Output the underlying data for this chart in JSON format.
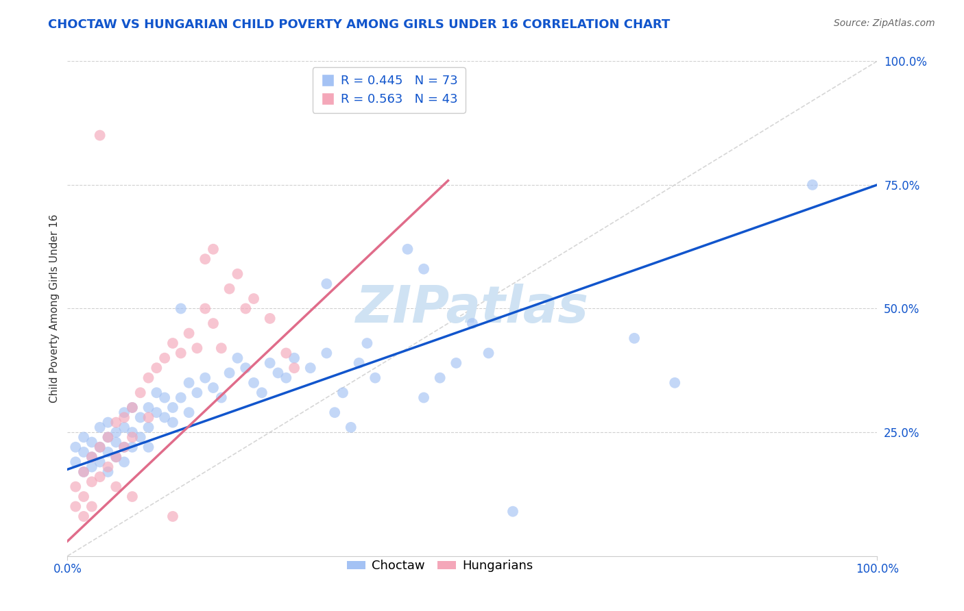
{
  "title": "CHOCTAW VS HUNGARIAN CHILD POVERTY AMONG GIRLS UNDER 16 CORRELATION CHART",
  "source": "Source: ZipAtlas.com",
  "ylabel": "Child Poverty Among Girls Under 16",
  "xlim": [
    0,
    1.0
  ],
  "ylim": [
    0,
    1.0
  ],
  "xtick_positions": [
    0.0,
    1.0
  ],
  "xtick_labels": [
    "0.0%",
    "100.0%"
  ],
  "ytick_positions": [
    0.25,
    0.5,
    0.75,
    1.0
  ],
  "ytick_labels": [
    "25.0%",
    "50.0%",
    "75.0%",
    "100.0%"
  ],
  "choctaw_R": 0.445,
  "choctaw_N": 73,
  "hungarian_R": 0.563,
  "hungarian_N": 43,
  "choctaw_color": "#a4c2f4",
  "hungarian_color": "#f4a7b9",
  "choctaw_line_color": "#1155cc",
  "hungarian_line_color": "#e06c8a",
  "diagonal_color": "#cccccc",
  "watermark": "ZIPatlas",
  "watermark_color": "#cfe2f3",
  "title_color": "#1155cc",
  "source_color": "#666666",
  "tick_color": "#1155cc",
  "ylabel_color": "#333333",
  "choctaw_line_intercept": 0.175,
  "choctaw_line_slope": 0.575,
  "hungarian_line_intercept": 0.03,
  "hungarian_line_slope": 1.55,
  "choctaw_points": [
    [
      0.01,
      0.22
    ],
    [
      0.01,
      0.19
    ],
    [
      0.02,
      0.21
    ],
    [
      0.02,
      0.17
    ],
    [
      0.02,
      0.24
    ],
    [
      0.03,
      0.2
    ],
    [
      0.03,
      0.23
    ],
    [
      0.03,
      0.18
    ],
    [
      0.04,
      0.22
    ],
    [
      0.04,
      0.26
    ],
    [
      0.04,
      0.19
    ],
    [
      0.05,
      0.24
    ],
    [
      0.05,
      0.21
    ],
    [
      0.05,
      0.17
    ],
    [
      0.05,
      0.27
    ],
    [
      0.06,
      0.23
    ],
    [
      0.06,
      0.2
    ],
    [
      0.06,
      0.25
    ],
    [
      0.07,
      0.26
    ],
    [
      0.07,
      0.22
    ],
    [
      0.07,
      0.29
    ],
    [
      0.07,
      0.19
    ],
    [
      0.08,
      0.25
    ],
    [
      0.08,
      0.3
    ],
    [
      0.08,
      0.22
    ],
    [
      0.09,
      0.28
    ],
    [
      0.09,
      0.24
    ],
    [
      0.1,
      0.3
    ],
    [
      0.1,
      0.26
    ],
    [
      0.1,
      0.22
    ],
    [
      0.11,
      0.29
    ],
    [
      0.11,
      0.33
    ],
    [
      0.12,
      0.28
    ],
    [
      0.12,
      0.32
    ],
    [
      0.13,
      0.3
    ],
    [
      0.13,
      0.27
    ],
    [
      0.14,
      0.32
    ],
    [
      0.15,
      0.35
    ],
    [
      0.15,
      0.29
    ],
    [
      0.16,
      0.33
    ],
    [
      0.17,
      0.36
    ],
    [
      0.18,
      0.34
    ],
    [
      0.19,
      0.32
    ],
    [
      0.2,
      0.37
    ],
    [
      0.21,
      0.4
    ],
    [
      0.22,
      0.38
    ],
    [
      0.23,
      0.35
    ],
    [
      0.24,
      0.33
    ],
    [
      0.25,
      0.39
    ],
    [
      0.26,
      0.37
    ],
    [
      0.27,
      0.36
    ],
    [
      0.28,
      0.4
    ],
    [
      0.3,
      0.38
    ],
    [
      0.32,
      0.41
    ],
    [
      0.33,
      0.29
    ],
    [
      0.34,
      0.33
    ],
    [
      0.35,
      0.26
    ],
    [
      0.36,
      0.39
    ],
    [
      0.37,
      0.43
    ],
    [
      0.38,
      0.36
    ],
    [
      0.32,
      0.55
    ],
    [
      0.42,
      0.62
    ],
    [
      0.44,
      0.58
    ],
    [
      0.48,
      0.39
    ],
    [
      0.14,
      0.5
    ],
    [
      0.7,
      0.44
    ],
    [
      0.75,
      0.35
    ],
    [
      0.92,
      0.75
    ],
    [
      0.5,
      0.47
    ],
    [
      0.52,
      0.41
    ],
    [
      0.44,
      0.32
    ],
    [
      0.46,
      0.36
    ],
    [
      0.55,
      0.09
    ]
  ],
  "hungarian_points": [
    [
      0.01,
      0.14
    ],
    [
      0.01,
      0.1
    ],
    [
      0.02,
      0.17
    ],
    [
      0.02,
      0.12
    ],
    [
      0.02,
      0.08
    ],
    [
      0.03,
      0.2
    ],
    [
      0.03,
      0.15
    ],
    [
      0.03,
      0.1
    ],
    [
      0.04,
      0.22
    ],
    [
      0.04,
      0.16
    ],
    [
      0.05,
      0.24
    ],
    [
      0.05,
      0.18
    ],
    [
      0.06,
      0.27
    ],
    [
      0.06,
      0.2
    ],
    [
      0.06,
      0.14
    ],
    [
      0.07,
      0.28
    ],
    [
      0.07,
      0.22
    ],
    [
      0.08,
      0.3
    ],
    [
      0.08,
      0.24
    ],
    [
      0.09,
      0.33
    ],
    [
      0.1,
      0.36
    ],
    [
      0.1,
      0.28
    ],
    [
      0.11,
      0.38
    ],
    [
      0.12,
      0.4
    ],
    [
      0.13,
      0.43
    ],
    [
      0.14,
      0.41
    ],
    [
      0.15,
      0.45
    ],
    [
      0.16,
      0.42
    ],
    [
      0.17,
      0.5
    ],
    [
      0.17,
      0.6
    ],
    [
      0.18,
      0.47
    ],
    [
      0.18,
      0.62
    ],
    [
      0.19,
      0.42
    ],
    [
      0.2,
      0.54
    ],
    [
      0.21,
      0.57
    ],
    [
      0.22,
      0.5
    ],
    [
      0.23,
      0.52
    ],
    [
      0.25,
      0.48
    ],
    [
      0.27,
      0.41
    ],
    [
      0.28,
      0.38
    ],
    [
      0.08,
      0.12
    ],
    [
      0.13,
      0.08
    ],
    [
      0.04,
      0.85
    ]
  ]
}
